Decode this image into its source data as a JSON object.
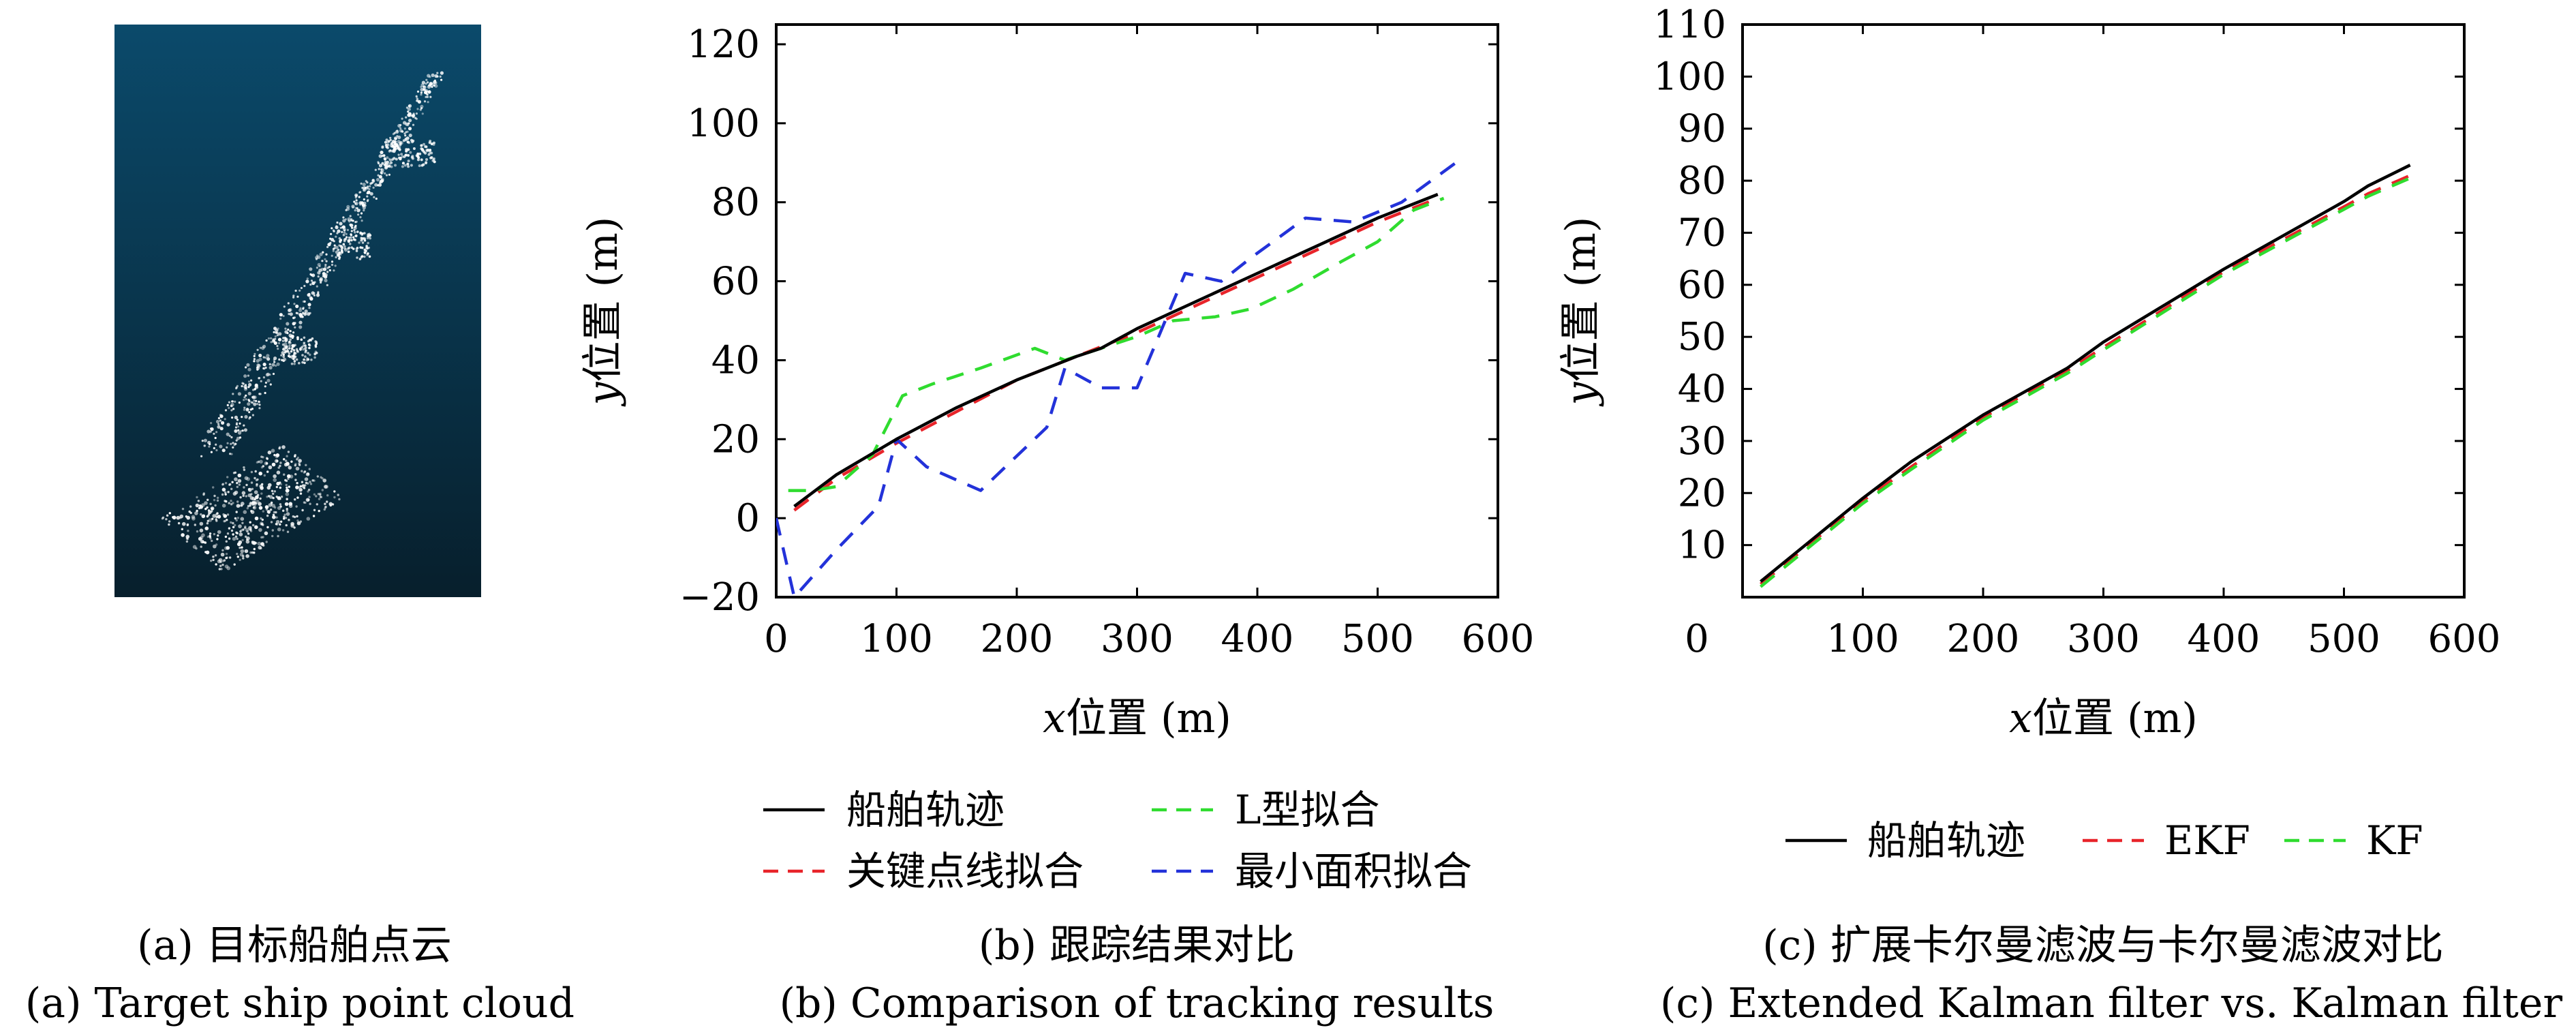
{
  "captions": {
    "a_cn": "(a) 目标船舶点云",
    "a_en": "(a) Target ship point cloud",
    "b_cn": "(b) 跟踪结果对比",
    "b_en": "(b) Comparison of tracking results",
    "c_cn": "(c) 扩展卡尔曼滤波与卡尔曼滤波对比",
    "c_en": "(c) Extended Kalman filter vs. Kalman filter"
  },
  "colors": {
    "black": "#000000",
    "red": "#e8242a",
    "green": "#2fdc2f",
    "blue": "#2332d9",
    "bg_top": "#0b4a6b",
    "bg_bottom": "#071f2c"
  },
  "panel_a": {
    "description_icon": "point-cloud-image"
  },
  "chart_data": [
    {
      "type": "line",
      "id": "b",
      "title": "",
      "xlabel_var": "x",
      "xlabel_text": "位置 (m)",
      "ylabel_var": "y",
      "ylabel_text": "位置 (m)",
      "xlim": [
        0,
        600
      ],
      "ylim": [
        -20,
        125
      ],
      "xticks": [
        0,
        100,
        200,
        300,
        400,
        500,
        600
      ],
      "yticks": [
        -20,
        0,
        20,
        40,
        60,
        80,
        100,
        120
      ],
      "ytick_labels": [
        "−20",
        "0",
        "20",
        "40",
        "60",
        "80",
        "100",
        "120"
      ],
      "grid": false,
      "legend_position": "below",
      "series": [
        {
          "name": "船舶轨迹",
          "color": "#000000",
          "dash": "solid",
          "x": [
            15,
            50,
            100,
            150,
            200,
            250,
            270,
            300,
            350,
            400,
            450,
            500,
            550
          ],
          "y": [
            3,
            11,
            20,
            28,
            35,
            41,
            43,
            48,
            55,
            62,
            69,
            76,
            82
          ]
        },
        {
          "name": "关键点线拟合",
          "color": "#e8242a",
          "dash": "dashed",
          "x": [
            15,
            50,
            100,
            150,
            200,
            250,
            300,
            350,
            400,
            450,
            500,
            550
          ],
          "y": [
            2,
            10,
            19,
            27,
            35,
            41,
            47,
            54,
            61,
            68,
            75,
            81
          ]
        },
        {
          "name": "L型拟合",
          "color": "#2fdc2f",
          "dash": "dashed",
          "x": [
            10,
            30,
            50,
            80,
            105,
            130,
            170,
            215,
            240,
            270,
            300,
            330,
            365,
            395,
            430,
            470,
            500,
            530,
            555
          ],
          "y": [
            7,
            7,
            8,
            16,
            31,
            34,
            38,
            43,
            40,
            43,
            46,
            50,
            51,
            53,
            58,
            65,
            70,
            78,
            81
          ]
        },
        {
          "name": "最小面积拟合",
          "color": "#2332d9",
          "dash": "dashed",
          "x": [
            0,
            15,
            50,
            85,
            100,
            125,
            170,
            225,
            240,
            270,
            300,
            340,
            370,
            395,
            440,
            480,
            520,
            565
          ],
          "y": [
            0,
            -20,
            -8,
            3,
            20,
            13,
            7,
            23,
            38,
            33,
            33,
            62,
            60,
            66,
            76,
            75,
            80,
            90
          ]
        }
      ]
    },
    {
      "type": "line",
      "id": "c",
      "title": "",
      "xlabel_var": "x",
      "xlabel_text": "位置 (m)",
      "ylabel_var": "y",
      "ylabel_text": "位置 (m)",
      "xlim": [
        0,
        600
      ],
      "ylim": [
        0,
        110
      ],
      "xticks": [
        0,
        100,
        200,
        300,
        400,
        500,
        600
      ],
      "yticks": [
        10,
        20,
        30,
        40,
        50,
        60,
        70,
        80,
        90,
        100,
        110
      ],
      "ytick_labels": [
        "10",
        "20",
        "30",
        "40",
        "50",
        "60",
        "70",
        "80",
        "90",
        "100",
        "110"
      ],
      "extra_xtick_label": "0",
      "grid": false,
      "legend_position": "below",
      "series": [
        {
          "name": "船舶轨迹",
          "color": "#000000",
          "dash": "solid",
          "x": [
            15,
            100,
            140,
            200,
            270,
            300,
            400,
            500,
            520,
            555
          ],
          "y": [
            3,
            19,
            26,
            35,
            44,
            49,
            63,
            76,
            79,
            83
          ]
        },
        {
          "name": "EKF",
          "color": "#e8242a",
          "dash": "dashed",
          "x": [
            15,
            100,
            140,
            200,
            270,
            300,
            400,
            500,
            520,
            555
          ],
          "y": [
            2.5,
            18.5,
            25,
            34.5,
            43.5,
            48,
            62.5,
            75,
            77.5,
            81
          ]
        },
        {
          "name": "KF",
          "color": "#2fdc2f",
          "dash": "dashed",
          "x": [
            15,
            100,
            140,
            200,
            270,
            300,
            400,
            500,
            520,
            555
          ],
          "y": [
            2,
            18,
            24.5,
            34,
            43,
            47.5,
            62,
            74.5,
            77,
            80.5
          ]
        }
      ]
    }
  ]
}
